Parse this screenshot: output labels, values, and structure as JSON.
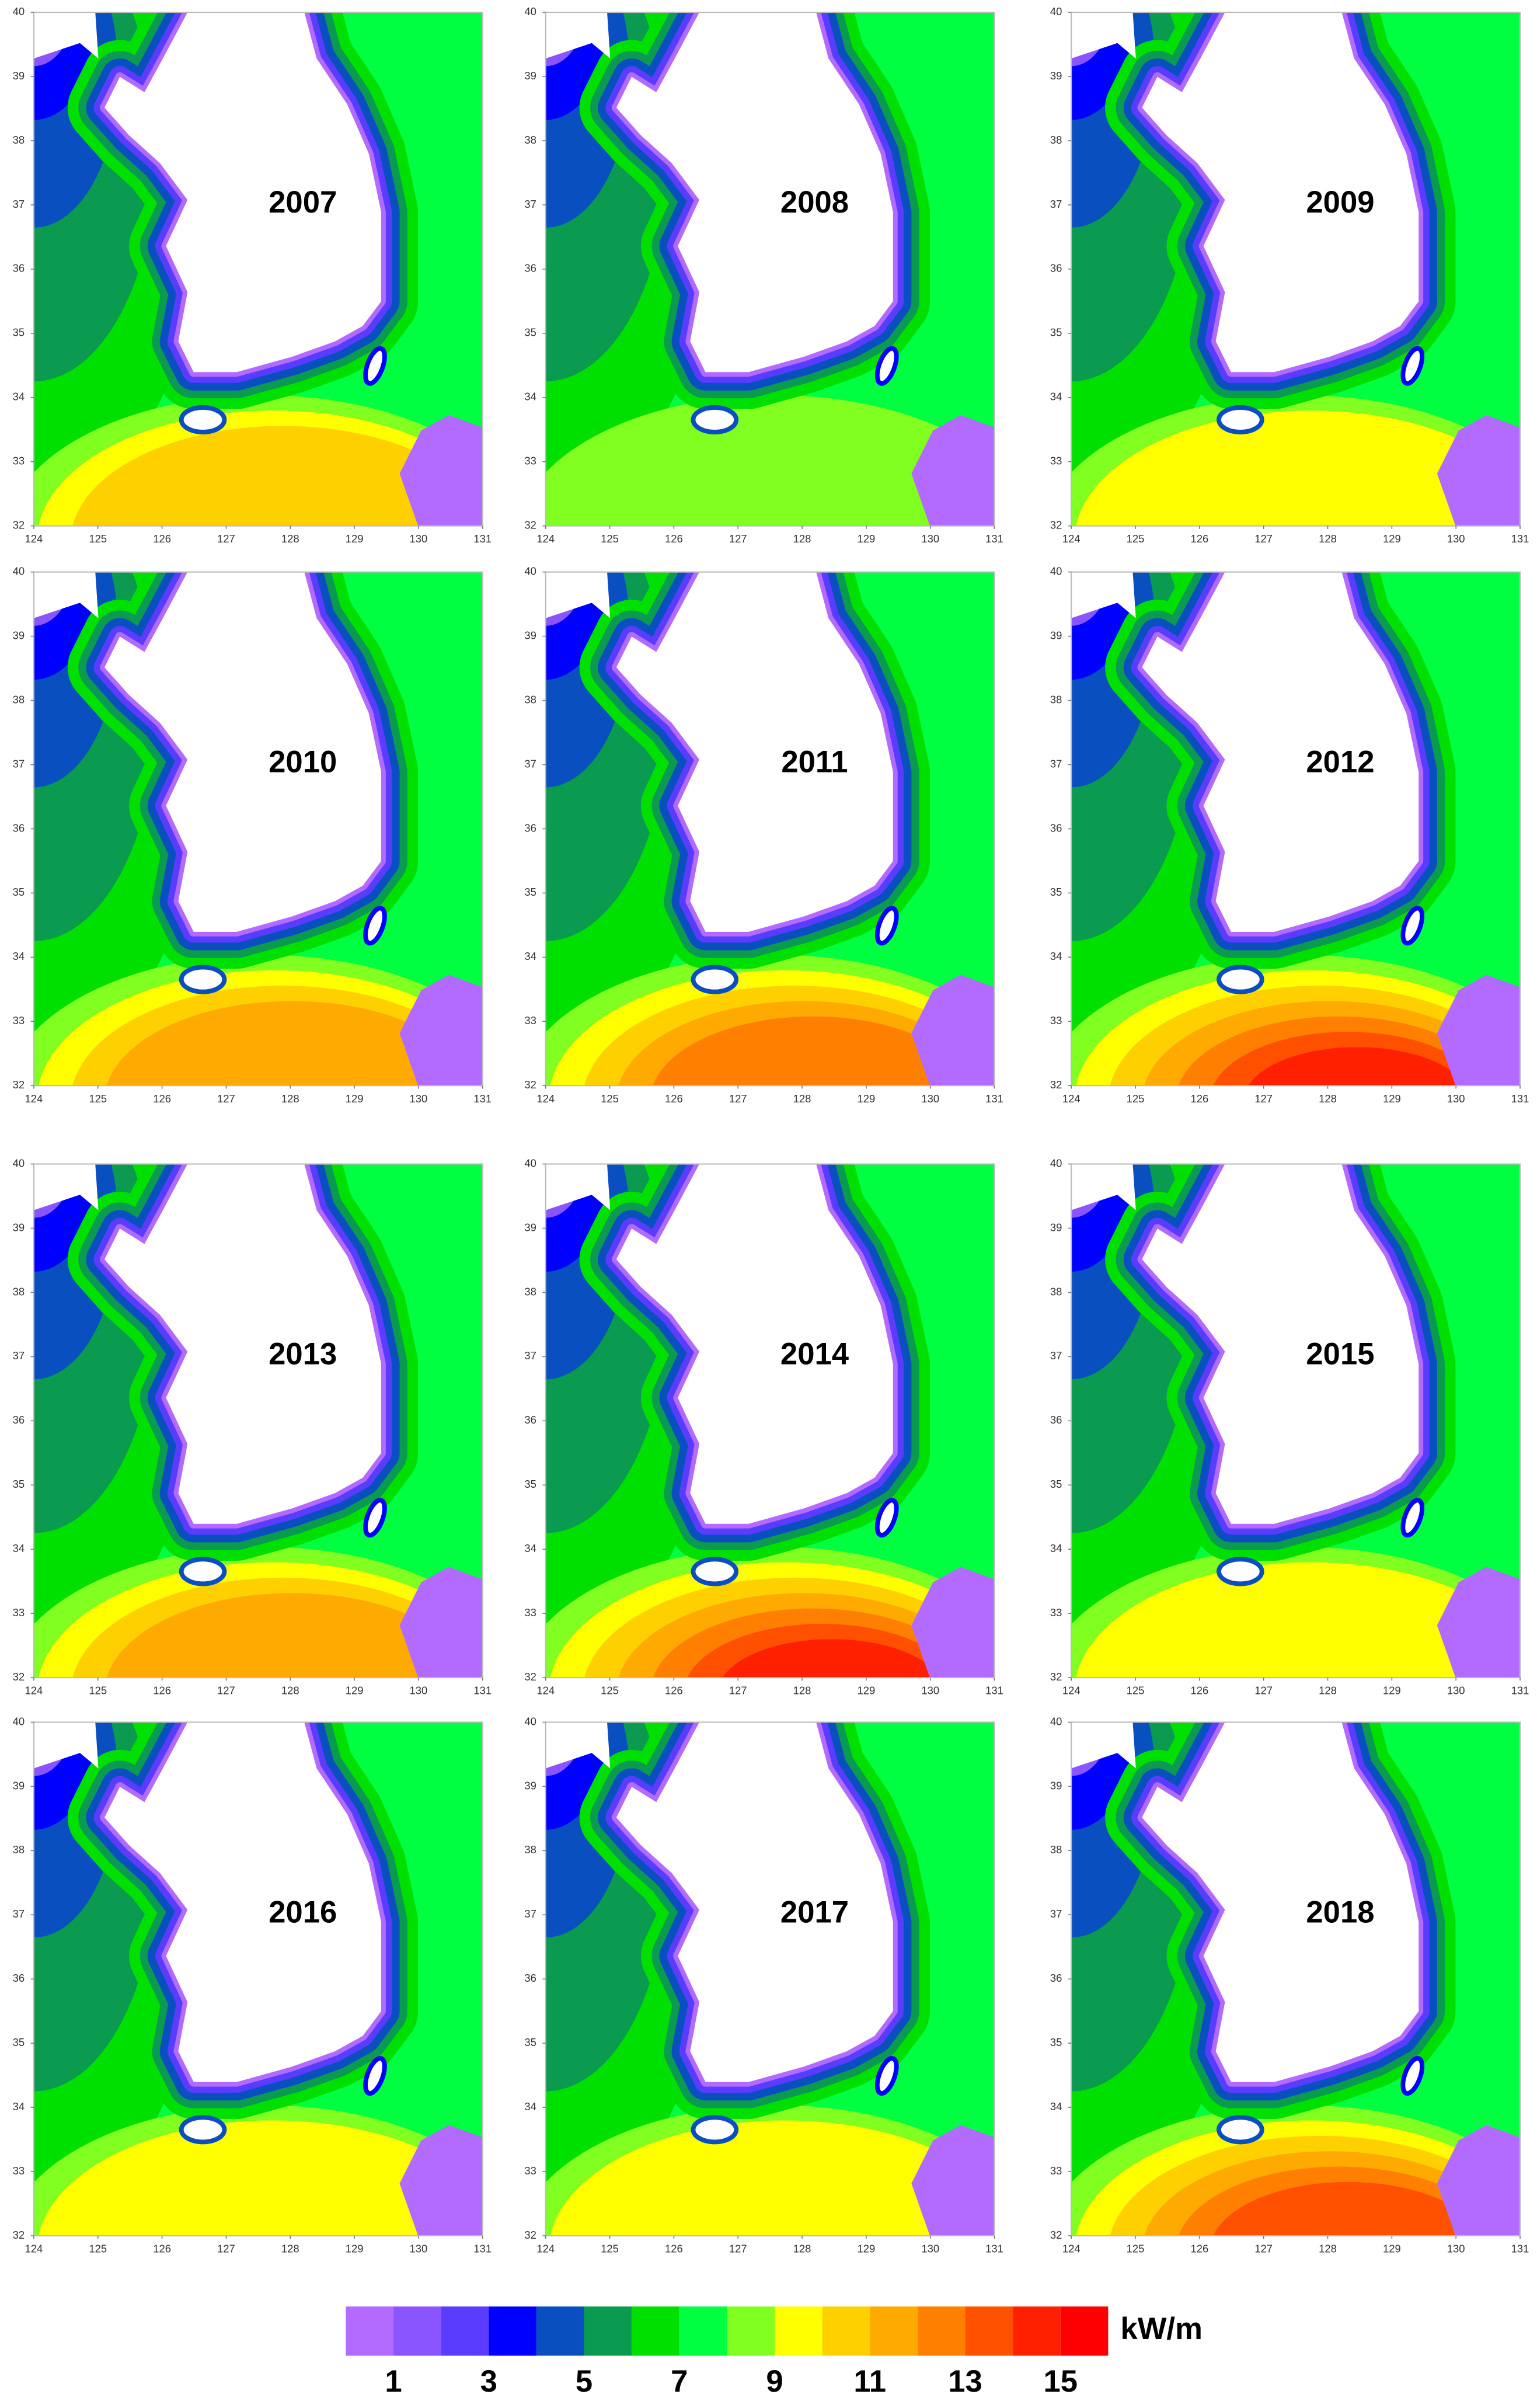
{
  "panels": [
    {
      "year": "2007"
    },
    {
      "year": "2008"
    },
    {
      "year": "2009"
    },
    {
      "year": "2010"
    },
    {
      "year": "2011"
    },
    {
      "year": "2012"
    },
    {
      "year": "2013"
    },
    {
      "year": "2014"
    },
    {
      "year": "2015"
    },
    {
      "year": "2016"
    },
    {
      "year": "2017"
    },
    {
      "year": "2018"
    }
  ],
  "axes": {
    "xticks": [
      124,
      125,
      126,
      127,
      128,
      129,
      130,
      131
    ],
    "yticks": [
      32,
      33,
      34,
      35,
      36,
      37,
      38,
      39,
      40
    ]
  },
  "colorbar": {
    "colors": [
      "#b36bff",
      "#8a55ff",
      "#5a3cff",
      "#0000ff",
      "#0a4fc0",
      "#0a9a50",
      "#00e000",
      "#00ff40",
      "#80ff20",
      "#ffff00",
      "#ffd000",
      "#ffaa00",
      "#ff8000",
      "#ff5000",
      "#ff2000",
      "#ff0000"
    ],
    "labels": [
      1,
      3,
      5,
      7,
      9,
      11,
      13,
      15
    ],
    "unit": "kW/m"
  }
}
